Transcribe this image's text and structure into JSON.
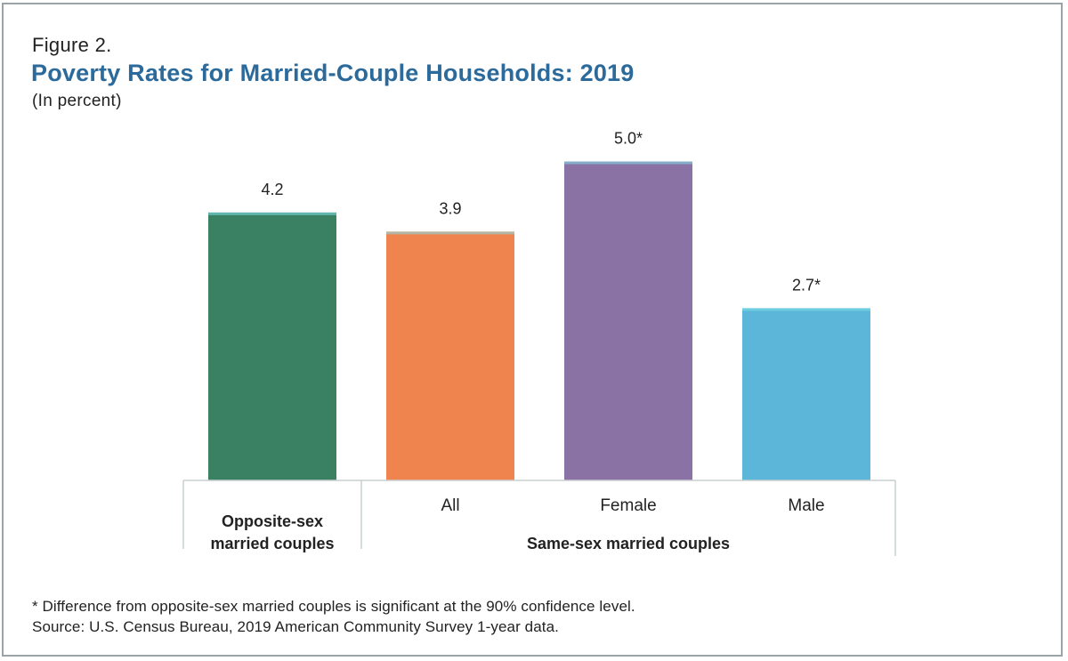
{
  "figure_label": "Figure 2.",
  "title": "Poverty Rates for Married-Couple Households: 2019",
  "subtitle": "(In percent)",
  "chart_data": {
    "type": "bar",
    "title": "Poverty Rates for Married-Couple Households: 2019",
    "ylabel": "(In percent)",
    "xlabel": "",
    "ylim": [
      0,
      5.3
    ],
    "grid": false,
    "categories": [
      "Opposite-sex married couples",
      "All",
      "Female",
      "Male"
    ],
    "values": [
      4.2,
      3.9,
      5.0,
      2.7
    ],
    "value_labels": [
      "4.2",
      "3.9",
      "5.0*",
      "2.7*"
    ],
    "colors": [
      "#3a8063",
      "#f0844e",
      "#8a72a4",
      "#5bb6d9"
    ],
    "category_labels": {
      "opposite_line1": "Opposite-sex",
      "opposite_line2": "married couples",
      "same_sex_sub": [
        "All",
        "Female",
        "Male"
      ],
      "same_sex_group": "Same-sex married couples"
    }
  },
  "footnote": {
    "significance": "* Difference from opposite-sex married couples is significant at the 90% confidence level.",
    "source": "Source: U.S. Census Bureau, 2019 American Community Survey 1-year data."
  }
}
